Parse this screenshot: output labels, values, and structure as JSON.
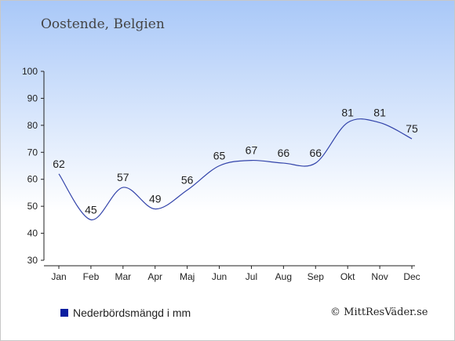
{
  "header": {
    "place": "Oostende, Belgien"
  },
  "legend": {
    "label": "Nederbördsmängd i mm",
    "swatch_color": "#0a1ea0"
  },
  "footer": {
    "copyright": "© MittResVäder.se"
  },
  "chart_data": {
    "type": "line",
    "categories": [
      "Jan",
      "Feb",
      "Mar",
      "Apr",
      "Maj",
      "Jun",
      "Jul",
      "Aug",
      "Sep",
      "Okt",
      "Nov",
      "Dec"
    ],
    "series": [
      {
        "name": "Nederbördsmängd i mm",
        "values": [
          62,
          45,
          57,
          49,
          56,
          65,
          67,
          66,
          66,
          81,
          81,
          75
        ]
      }
    ],
    "ylim": [
      30,
      100
    ],
    "yticks": [
      30,
      40,
      50,
      60,
      70,
      80,
      90,
      100
    ],
    "grid": false,
    "line_color": "#3344aa"
  }
}
